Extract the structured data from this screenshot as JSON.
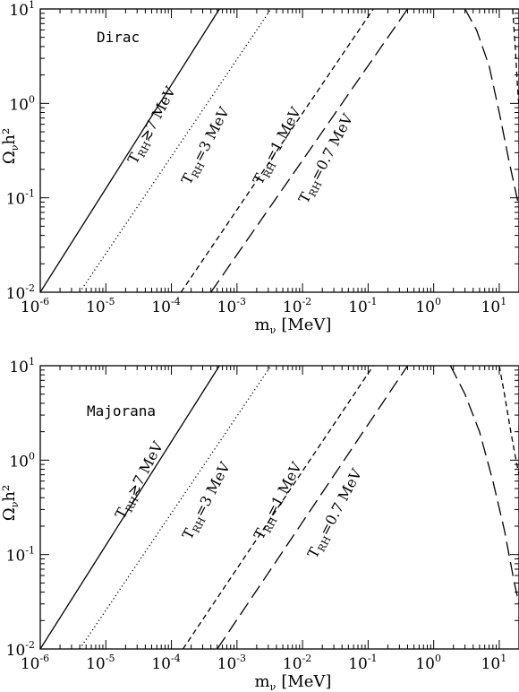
{
  "chart_data": [
    {
      "type": "line",
      "panel_label": "Dirac",
      "xlabel": "m",
      "xlabel_sub": "ν",
      "xlabel_units": "[MeV]",
      "ylabel": "Ω",
      "ylabel_sub": "ν",
      "ylabel_tail": "h²",
      "xscale": "log",
      "yscale": "log",
      "xlim": [
        1e-06,
        20
      ],
      "ylim": [
        0.01,
        10
      ],
      "x_ticks": [
        {
          "base": "10",
          "exp": "-6"
        },
        {
          "base": "10",
          "exp": "-5"
        },
        {
          "base": "10",
          "exp": "-4"
        },
        {
          "base": "10",
          "exp": "-3"
        },
        {
          "base": "10",
          "exp": "-2"
        },
        {
          "base": "10",
          "exp": "-1"
        },
        {
          "base": "10",
          "exp": "0"
        },
        {
          "base": "10",
          "exp": "1"
        }
      ],
      "y_ticks": [
        {
          "base": "10",
          "exp": "-2"
        },
        {
          "base": "10",
          "exp": "-1"
        },
        {
          "base": "10",
          "exp": "0"
        },
        {
          "base": "10",
          "exp": "1"
        }
      ],
      "series": [
        {
          "main": "T",
          "sub": "RH",
          "rest": "≳7 MeV",
          "style": "solid",
          "x": [
            1e-06,
            0.00054
          ],
          "y": [
            0.01,
            10
          ]
        },
        {
          "main": "T",
          "sub": "RH",
          "rest": "=3 MeV",
          "style": "dotted",
          "x": [
            4e-06,
            0.0033
          ],
          "y": [
            0.01,
            10
          ]
        },
        {
          "main": "T",
          "sub": "RH",
          "rest": "=1 MeV",
          "style": "dashed",
          "x": [
            0.00014,
            0.12
          ],
          "y": [
            0.01,
            10
          ]
        },
        {
          "main": "T",
          "sub": "RH",
          "rest": "=0.7 MeV",
          "style": "longdash",
          "x": [
            0.0004,
            0.4
          ],
          "y": [
            0.01,
            10
          ]
        }
      ],
      "right_branches": [
        {
          "style": "longdash",
          "x": [
            3.0,
            4.5,
            7.0,
            10.0,
            14.0,
            20.0
          ],
          "y": [
            10,
            6,
            2.5,
            0.8,
            0.25,
            0.08
          ]
        },
        {
          "style": "dashed",
          "x": [
            16.0,
            17.5,
            19.0,
            20.0
          ],
          "y": [
            10,
            4,
            1.5,
            0.9
          ]
        }
      ]
    },
    {
      "type": "line",
      "panel_label": "Majorana",
      "xlabel": "m",
      "xlabel_sub": "ν",
      "xlabel_units": "[MeV]",
      "ylabel": "Ω",
      "ylabel_sub": "ν",
      "ylabel_tail": "h²",
      "xscale": "log",
      "yscale": "log",
      "xlim": [
        1e-06,
        20
      ],
      "ylim": [
        0.01,
        10
      ],
      "x_ticks": [
        {
          "base": "10",
          "exp": "-6"
        },
        {
          "base": "10",
          "exp": "-5"
        },
        {
          "base": "10",
          "exp": "-4"
        },
        {
          "base": "10",
          "exp": "-3"
        },
        {
          "base": "10",
          "exp": "-2"
        },
        {
          "base": "10",
          "exp": "-1"
        },
        {
          "base": "10",
          "exp": "0"
        },
        {
          "base": "10",
          "exp": "1"
        }
      ],
      "y_ticks": [
        {
          "base": "10",
          "exp": "-2"
        },
        {
          "base": "10",
          "exp": "-1"
        },
        {
          "base": "10",
          "exp": "0"
        },
        {
          "base": "10",
          "exp": "1"
        }
      ],
      "series": [
        {
          "main": "T",
          "sub": "RH",
          "rest": "≳7 MeV",
          "style": "solid",
          "x": [
            1e-06,
            0.00054
          ],
          "y": [
            0.01,
            10
          ]
        },
        {
          "main": "T",
          "sub": "RH",
          "rest": "=3 MeV",
          "style": "dotted",
          "x": [
            4e-06,
            0.0033
          ],
          "y": [
            0.01,
            10
          ]
        },
        {
          "main": "T",
          "sub": "RH",
          "rest": "=1 MeV",
          "style": "dashed",
          "x": [
            0.00015,
            0.12
          ],
          "y": [
            0.01,
            10
          ]
        },
        {
          "main": "T",
          "sub": "RH",
          "rest": "=0.7 MeV",
          "style": "longdash",
          "x": [
            0.0005,
            0.4
          ],
          "y": [
            0.01,
            10
          ]
        }
      ],
      "right_branches": [
        {
          "style": "longdash",
          "x": [
            1.8,
            3.0,
            5.0,
            8.0,
            12.0,
            17.0,
            20.0
          ],
          "y": [
            10,
            5,
            2,
            0.6,
            0.18,
            0.05,
            0.03
          ]
        },
        {
          "style": "dashed",
          "x": [
            10.0,
            12.0,
            15.0,
            18.0,
            20.0
          ],
          "y": [
            10,
            5,
            2,
            1,
            0.7
          ]
        }
      ]
    }
  ]
}
